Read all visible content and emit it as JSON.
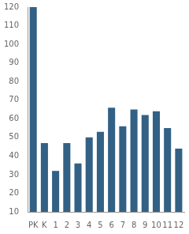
{
  "chart_data": {
    "type": "bar",
    "categories": [
      "PK",
      "K",
      "1",
      "2",
      "3",
      "4",
      "5",
      "6",
      "7",
      "8",
      "9",
      "10",
      "11",
      "12"
    ],
    "values": [
      120,
      47,
      32,
      47,
      36,
      50,
      53,
      66,
      56,
      65,
      62,
      64,
      55,
      44
    ],
    "color": "#336185",
    "ylim": [
      10,
      120
    ],
    "yticks": [
      10,
      20,
      30,
      40,
      50,
      60,
      70,
      80,
      90,
      100,
      110,
      120
    ],
    "grid": false
  }
}
